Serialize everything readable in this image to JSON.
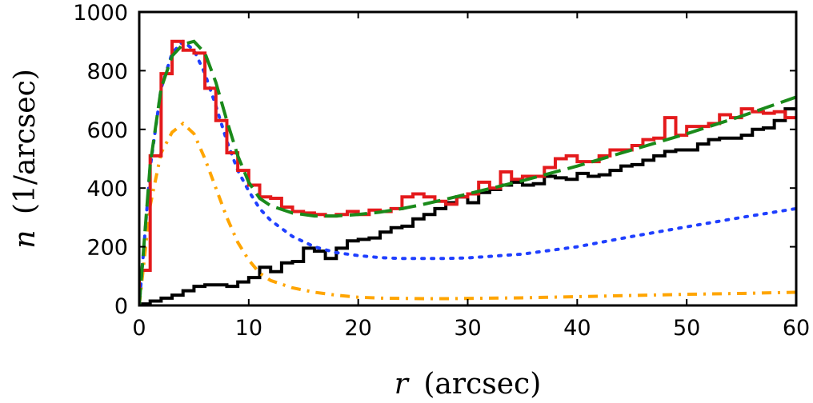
{
  "chart_data": {
    "type": "line",
    "title": "",
    "xlabel_var": "r",
    "xlabel_unit": "(arcsec)",
    "ylabel_var": "n",
    "ylabel_unit": "(1/arcsec)",
    "xlim": [
      0,
      60
    ],
    "ylim": [
      0,
      1000
    ],
    "xticks": [
      0,
      10,
      20,
      30,
      40,
      50,
      60
    ],
    "yticks": [
      0,
      200,
      400,
      600,
      800,
      1000
    ],
    "grid": false,
    "legend": "none",
    "series": [
      {
        "name": "red-histogram",
        "style": "step",
        "color": "#e41a1c",
        "bin_width": 1,
        "values": [
          120,
          510,
          790,
          900,
          870,
          860,
          740,
          630,
          520,
          460,
          410,
          370,
          365,
          335,
          320,
          315,
          310,
          305,
          310,
          320,
          310,
          325,
          320,
          330,
          370,
          380,
          370,
          355,
          345,
          370,
          380,
          420,
          400,
          455,
          430,
          440,
          440,
          470,
          500,
          510,
          490,
          490,
          510,
          530,
          530,
          545,
          565,
          570,
          640,
          580,
          610,
          610,
          620,
          650,
          640,
          670,
          660,
          655,
          660,
          640
        ]
      },
      {
        "name": "black-histogram",
        "style": "step",
        "color": "#000000",
        "bin_width": 1,
        "values": [
          5,
          15,
          25,
          35,
          50,
          65,
          70,
          70,
          65,
          80,
          95,
          130,
          115,
          145,
          150,
          195,
          185,
          160,
          195,
          220,
          225,
          230,
          250,
          265,
          270,
          295,
          310,
          330,
          350,
          370,
          350,
          385,
          395,
          410,
          420,
          410,
          415,
          440,
          435,
          430,
          450,
          440,
          445,
          460,
          475,
          480,
          495,
          510,
          525,
          530,
          530,
          550,
          565,
          570,
          570,
          580,
          600,
          605,
          630,
          670
        ]
      },
      {
        "name": "green-dashed-model",
        "style": "dashed",
        "color": "#1a8a1a",
        "x": [
          0,
          1,
          2,
          3,
          4,
          5,
          6,
          7,
          8,
          9,
          10,
          11,
          12,
          14,
          16,
          18,
          20,
          22,
          24,
          26,
          28,
          30,
          35,
          40,
          45,
          50,
          55,
          60
        ],
        "y": [
          0,
          480,
          740,
          850,
          890,
          900,
          860,
          760,
          630,
          510,
          420,
          365,
          340,
          315,
          305,
          305,
          310,
          318,
          330,
          345,
          362,
          380,
          425,
          475,
          530,
          585,
          645,
          710
        ]
      },
      {
        "name": "blue-dotted-model",
        "style": "dotted",
        "color": "#1f3fff",
        "x": [
          0,
          1,
          2,
          3,
          4,
          5,
          6,
          7,
          8,
          9,
          10,
          11,
          12,
          14,
          16,
          18,
          20,
          22,
          24,
          26,
          28,
          30,
          35,
          40,
          45,
          50,
          55,
          60
        ],
        "y": [
          0,
          470,
          740,
          860,
          900,
          870,
          790,
          680,
          560,
          460,
          390,
          330,
          290,
          235,
          200,
          180,
          170,
          163,
          160,
          160,
          160,
          162,
          175,
          200,
          235,
          268,
          300,
          330
        ]
      },
      {
        "name": "orange-dashdot-model",
        "style": "dashdot",
        "color": "#ffa500",
        "x": [
          0,
          1,
          2,
          3,
          4,
          5,
          6,
          7,
          8,
          9,
          10,
          11,
          12,
          14,
          16,
          18,
          20,
          22,
          24,
          26,
          28,
          30,
          35,
          40,
          45,
          50,
          55,
          60
        ],
        "y": [
          0,
          340,
          520,
          590,
          620,
          585,
          500,
          400,
          300,
          215,
          155,
          110,
          85,
          60,
          45,
          35,
          28,
          25,
          24,
          23,
          23,
          24,
          26,
          30,
          34,
          38,
          41,
          45
        ]
      }
    ]
  }
}
